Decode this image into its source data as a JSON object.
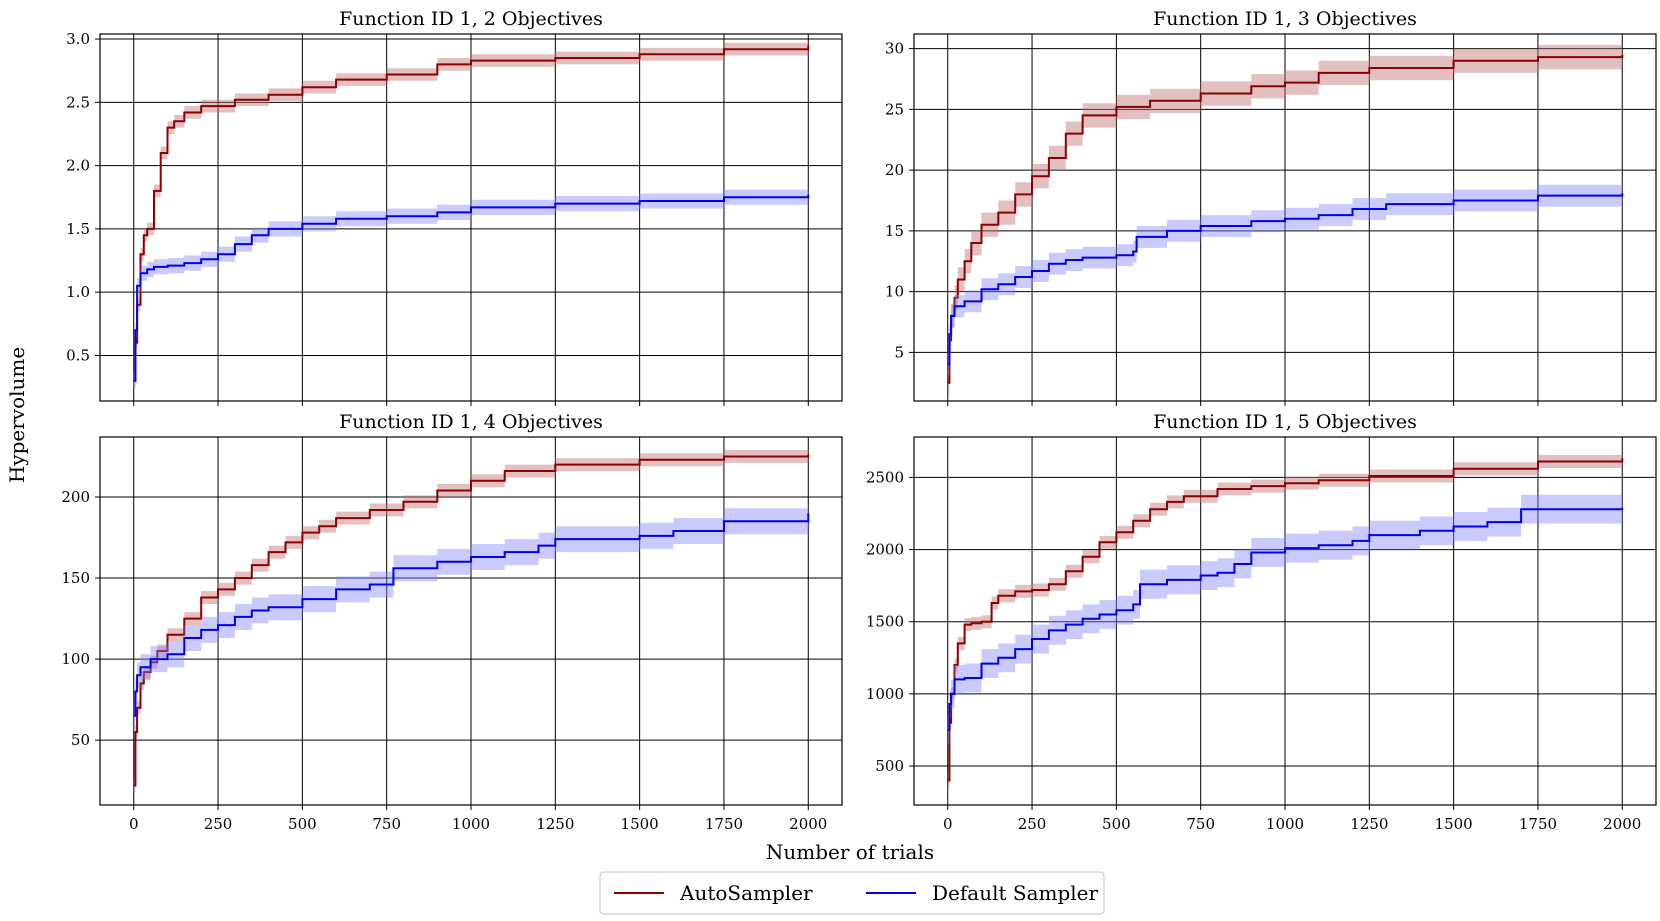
{
  "figure": {
    "ylabel": "Hypervolume",
    "xlabel": "Number of trials"
  },
  "legend": {
    "position": "bottom-center",
    "entries": [
      {
        "label": "AutoSampler",
        "color": "#8b0000"
      },
      {
        "label": "Default Sampler",
        "color": "#0000ee"
      }
    ]
  },
  "colors": {
    "auto_line": "#8b0000",
    "auto_band": "#c07070",
    "default_line": "#0000ee",
    "default_band": "#8080ff",
    "grid": "#000000"
  },
  "chart_data": [
    {
      "type": "line",
      "title": "Function ID 1, 2 Objectives",
      "xlim": [
        -100,
        2100
      ],
      "ylim": [
        0.14,
        3.04
      ],
      "xticks": [
        0,
        250,
        500,
        750,
        1000,
        1250,
        1500,
        1750,
        2000
      ],
      "xtick_labels_visible": false,
      "yticks": [
        0.5,
        1.0,
        1.5,
        2.0,
        2.5,
        3.0
      ],
      "ytick_labels": [
        "0.5",
        "1.0",
        "1.5",
        "2.0",
        "2.5",
        "3.0"
      ],
      "series": [
        {
          "name": "AutoSampler",
          "x": [
            0,
            5,
            10,
            20,
            30,
            40,
            60,
            80,
            100,
            120,
            150,
            200,
            300,
            400,
            500,
            600,
            750,
            900,
            1000,
            1250,
            1500,
            1750,
            2000
          ],
          "mean": [
            0.3,
            0.6,
            0.9,
            1.3,
            1.45,
            1.5,
            1.8,
            2.1,
            2.3,
            2.35,
            2.42,
            2.47,
            2.52,
            2.56,
            2.62,
            2.68,
            2.72,
            2.8,
            2.83,
            2.85,
            2.88,
            2.92,
            2.95
          ],
          "band": 0.05
        },
        {
          "name": "Default Sampler",
          "x": [
            0,
            5,
            10,
            20,
            40,
            60,
            100,
            150,
            200,
            250,
            300,
            350,
            400,
            500,
            600,
            750,
            900,
            1000,
            1250,
            1500,
            1750,
            2000
          ],
          "mean": [
            0.3,
            0.7,
            1.05,
            1.15,
            1.18,
            1.2,
            1.21,
            1.23,
            1.26,
            1.3,
            1.38,
            1.45,
            1.5,
            1.54,
            1.58,
            1.6,
            1.63,
            1.67,
            1.7,
            1.72,
            1.75,
            1.77
          ],
          "band": 0.06
        }
      ]
    },
    {
      "type": "line",
      "title": "Function ID 1, 3 Objectives",
      "xlim": [
        -100,
        2100
      ],
      "ylim": [
        1,
        31.2
      ],
      "xticks": [
        0,
        250,
        500,
        750,
        1000,
        1250,
        1500,
        1750,
        2000
      ],
      "xtick_labels_visible": false,
      "yticks": [
        5,
        10,
        15,
        20,
        25,
        30
      ],
      "ytick_labels": [
        "5",
        "10",
        "15",
        "20",
        "25",
        "30"
      ],
      "series": [
        {
          "name": "AutoSampler",
          "x": [
            0,
            5,
            10,
            20,
            30,
            50,
            70,
            100,
            150,
            200,
            250,
            300,
            350,
            400,
            500,
            600,
            750,
            900,
            1000,
            1100,
            1250,
            1500,
            1750,
            2000
          ],
          "mean": [
            2.5,
            6,
            8,
            9.5,
            11,
            12.5,
            14,
            15.5,
            16.5,
            18,
            19.5,
            21,
            23,
            24.5,
            25.2,
            25.7,
            26.3,
            26.9,
            27.2,
            28,
            28.4,
            29,
            29.3,
            29.5
          ],
          "band": 1.0
        },
        {
          "name": "Default Sampler",
          "x": [
            0,
            5,
            10,
            20,
            50,
            100,
            150,
            200,
            250,
            300,
            350,
            400,
            500,
            550,
            560,
            650,
            750,
            900,
            1000,
            1100,
            1200,
            1300,
            1500,
            1750,
            2000
          ],
          "mean": [
            4,
            6.5,
            8,
            8.8,
            9.2,
            10.2,
            10.6,
            11.2,
            11.7,
            12.3,
            12.6,
            12.8,
            13,
            13.3,
            14.5,
            15,
            15.4,
            15.8,
            16,
            16.3,
            16.8,
            17.2,
            17.5,
            17.9,
            18.1
          ],
          "band": 0.9
        }
      ]
    },
    {
      "type": "line",
      "title": "Function ID 1, 4 Objectives",
      "xlim": [
        -100,
        2100
      ],
      "ylim": [
        10,
        237
      ],
      "xticks": [
        0,
        250,
        500,
        750,
        1000,
        1250,
        1500,
        1750,
        2000
      ],
      "xtick_labels_visible": true,
      "xtick_labels": [
        "0",
        "250",
        "500",
        "750",
        "1000",
        "1250",
        "1500",
        "1750",
        "2000"
      ],
      "yticks": [
        50,
        100,
        150,
        200
      ],
      "ytick_labels": [
        "50",
        "100",
        "150",
        "200"
      ],
      "series": [
        {
          "name": "AutoSampler",
          "x": [
            0,
            5,
            10,
            20,
            30,
            50,
            70,
            100,
            150,
            200,
            250,
            300,
            350,
            400,
            450,
            500,
            550,
            600,
            700,
            800,
            900,
            1000,
            1100,
            1250,
            1500,
            1750,
            2000
          ],
          "mean": [
            22,
            55,
            70,
            85,
            92,
            98,
            105,
            115,
            125,
            138,
            143,
            150,
            158,
            166,
            172,
            178,
            182,
            187,
            192,
            197,
            204,
            210,
            216,
            220,
            223,
            225,
            226
          ],
          "band": 4
        },
        {
          "name": "Default Sampler",
          "x": [
            0,
            5,
            10,
            20,
            50,
            100,
            150,
            200,
            250,
            300,
            350,
            400,
            500,
            600,
            700,
            770,
            900,
            1000,
            1100,
            1200,
            1250,
            1500,
            1600,
            1750,
            2000
          ],
          "mean": [
            65,
            80,
            90,
            95,
            100,
            103,
            113,
            118,
            121,
            126,
            130,
            132,
            137,
            143,
            146,
            156,
            160,
            163,
            166,
            170,
            174,
            176,
            179,
            185,
            190
          ],
          "band": 8
        }
      ]
    },
    {
      "type": "line",
      "title": "Function ID 1, 5 Objectives",
      "xlim": [
        -100,
        2100
      ],
      "ylim": [
        230,
        2780
      ],
      "xticks": [
        0,
        250,
        500,
        750,
        1000,
        1250,
        1500,
        1750,
        2000
      ],
      "xtick_labels_visible": true,
      "xtick_labels": [
        "0",
        "250",
        "500",
        "750",
        "1000",
        "1250",
        "1500",
        "1750",
        "2000"
      ],
      "yticks": [
        500,
        1000,
        1500,
        2000,
        2500
      ],
      "ytick_labels": [
        "500",
        "1000",
        "1500",
        "2000",
        "2500"
      ],
      "series": [
        {
          "name": "AutoSampler",
          "x": [
            0,
            5,
            10,
            20,
            30,
            50,
            70,
            100,
            130,
            150,
            200,
            250,
            300,
            350,
            400,
            450,
            500,
            550,
            600,
            650,
            700,
            800,
            900,
            1000,
            1100,
            1250,
            1500,
            1750,
            2000
          ],
          "mean": [
            400,
            800,
            1000,
            1200,
            1350,
            1480,
            1490,
            1500,
            1630,
            1680,
            1710,
            1720,
            1760,
            1850,
            1950,
            2050,
            2120,
            2200,
            2280,
            2330,
            2370,
            2420,
            2440,
            2460,
            2480,
            2510,
            2560,
            2610,
            2630
          ],
          "band": 45
        },
        {
          "name": "Default Sampler",
          "x": [
            0,
            5,
            10,
            20,
            50,
            100,
            150,
            200,
            250,
            300,
            350,
            400,
            450,
            500,
            550,
            570,
            650,
            750,
            800,
            850,
            900,
            1000,
            1100,
            1200,
            1250,
            1400,
            1500,
            1600,
            1700,
            2000
          ],
          "mean": [
            750,
            930,
            1000,
            1100,
            1110,
            1210,
            1250,
            1310,
            1380,
            1440,
            1480,
            1520,
            1550,
            1580,
            1620,
            1760,
            1790,
            1820,
            1840,
            1900,
            1980,
            2010,
            2030,
            2060,
            2100,
            2130,
            2160,
            2190,
            2280,
            2290
          ],
          "band": 100
        }
      ]
    }
  ]
}
